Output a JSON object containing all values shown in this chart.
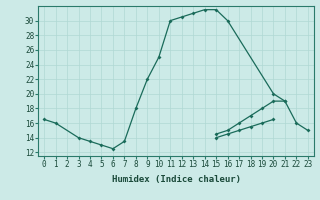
{
  "title": "",
  "xlabel": "Humidex (Indice chaleur)",
  "bg_color": "#cceae7",
  "grid_color": "#b0d8d4",
  "line_color": "#1a6b5a",
  "s1_x": [
    0,
    1,
    3,
    4,
    5,
    6,
    7,
    8,
    9,
    10,
    11,
    12,
    13,
    14,
    15,
    16,
    20,
    21,
    22,
    23
  ],
  "s1_y": [
    16.5,
    16.0,
    14.0,
    13.5,
    13.0,
    12.5,
    13.5,
    18.0,
    22.0,
    25.0,
    30.0,
    30.5,
    31.0,
    31.5,
    31.5,
    30.0,
    20.0,
    19.0,
    16.0,
    15.0
  ],
  "s2_x": [
    15,
    16,
    17,
    18,
    19,
    20,
    21
  ],
  "s2_y": [
    14.5,
    15.0,
    16.0,
    17.0,
    18.0,
    19.0,
    19.0
  ],
  "s3_x": [
    15,
    16,
    17,
    18,
    19,
    20
  ],
  "s3_y": [
    14.0,
    14.5,
    15.0,
    15.5,
    16.0,
    16.5
  ],
  "xlim": [
    -0.5,
    23.5
  ],
  "ylim": [
    11.5,
    32.0
  ],
  "yticks": [
    12,
    14,
    16,
    18,
    20,
    22,
    24,
    26,
    28,
    30
  ],
  "xticks": [
    0,
    1,
    2,
    3,
    4,
    5,
    6,
    7,
    8,
    9,
    10,
    11,
    12,
    13,
    14,
    15,
    16,
    17,
    18,
    19,
    20,
    21,
    22,
    23
  ],
  "xlabel_fontsize": 6.5,
  "tick_fontsize": 5.5,
  "marker_size": 2.0,
  "line_width": 0.9
}
